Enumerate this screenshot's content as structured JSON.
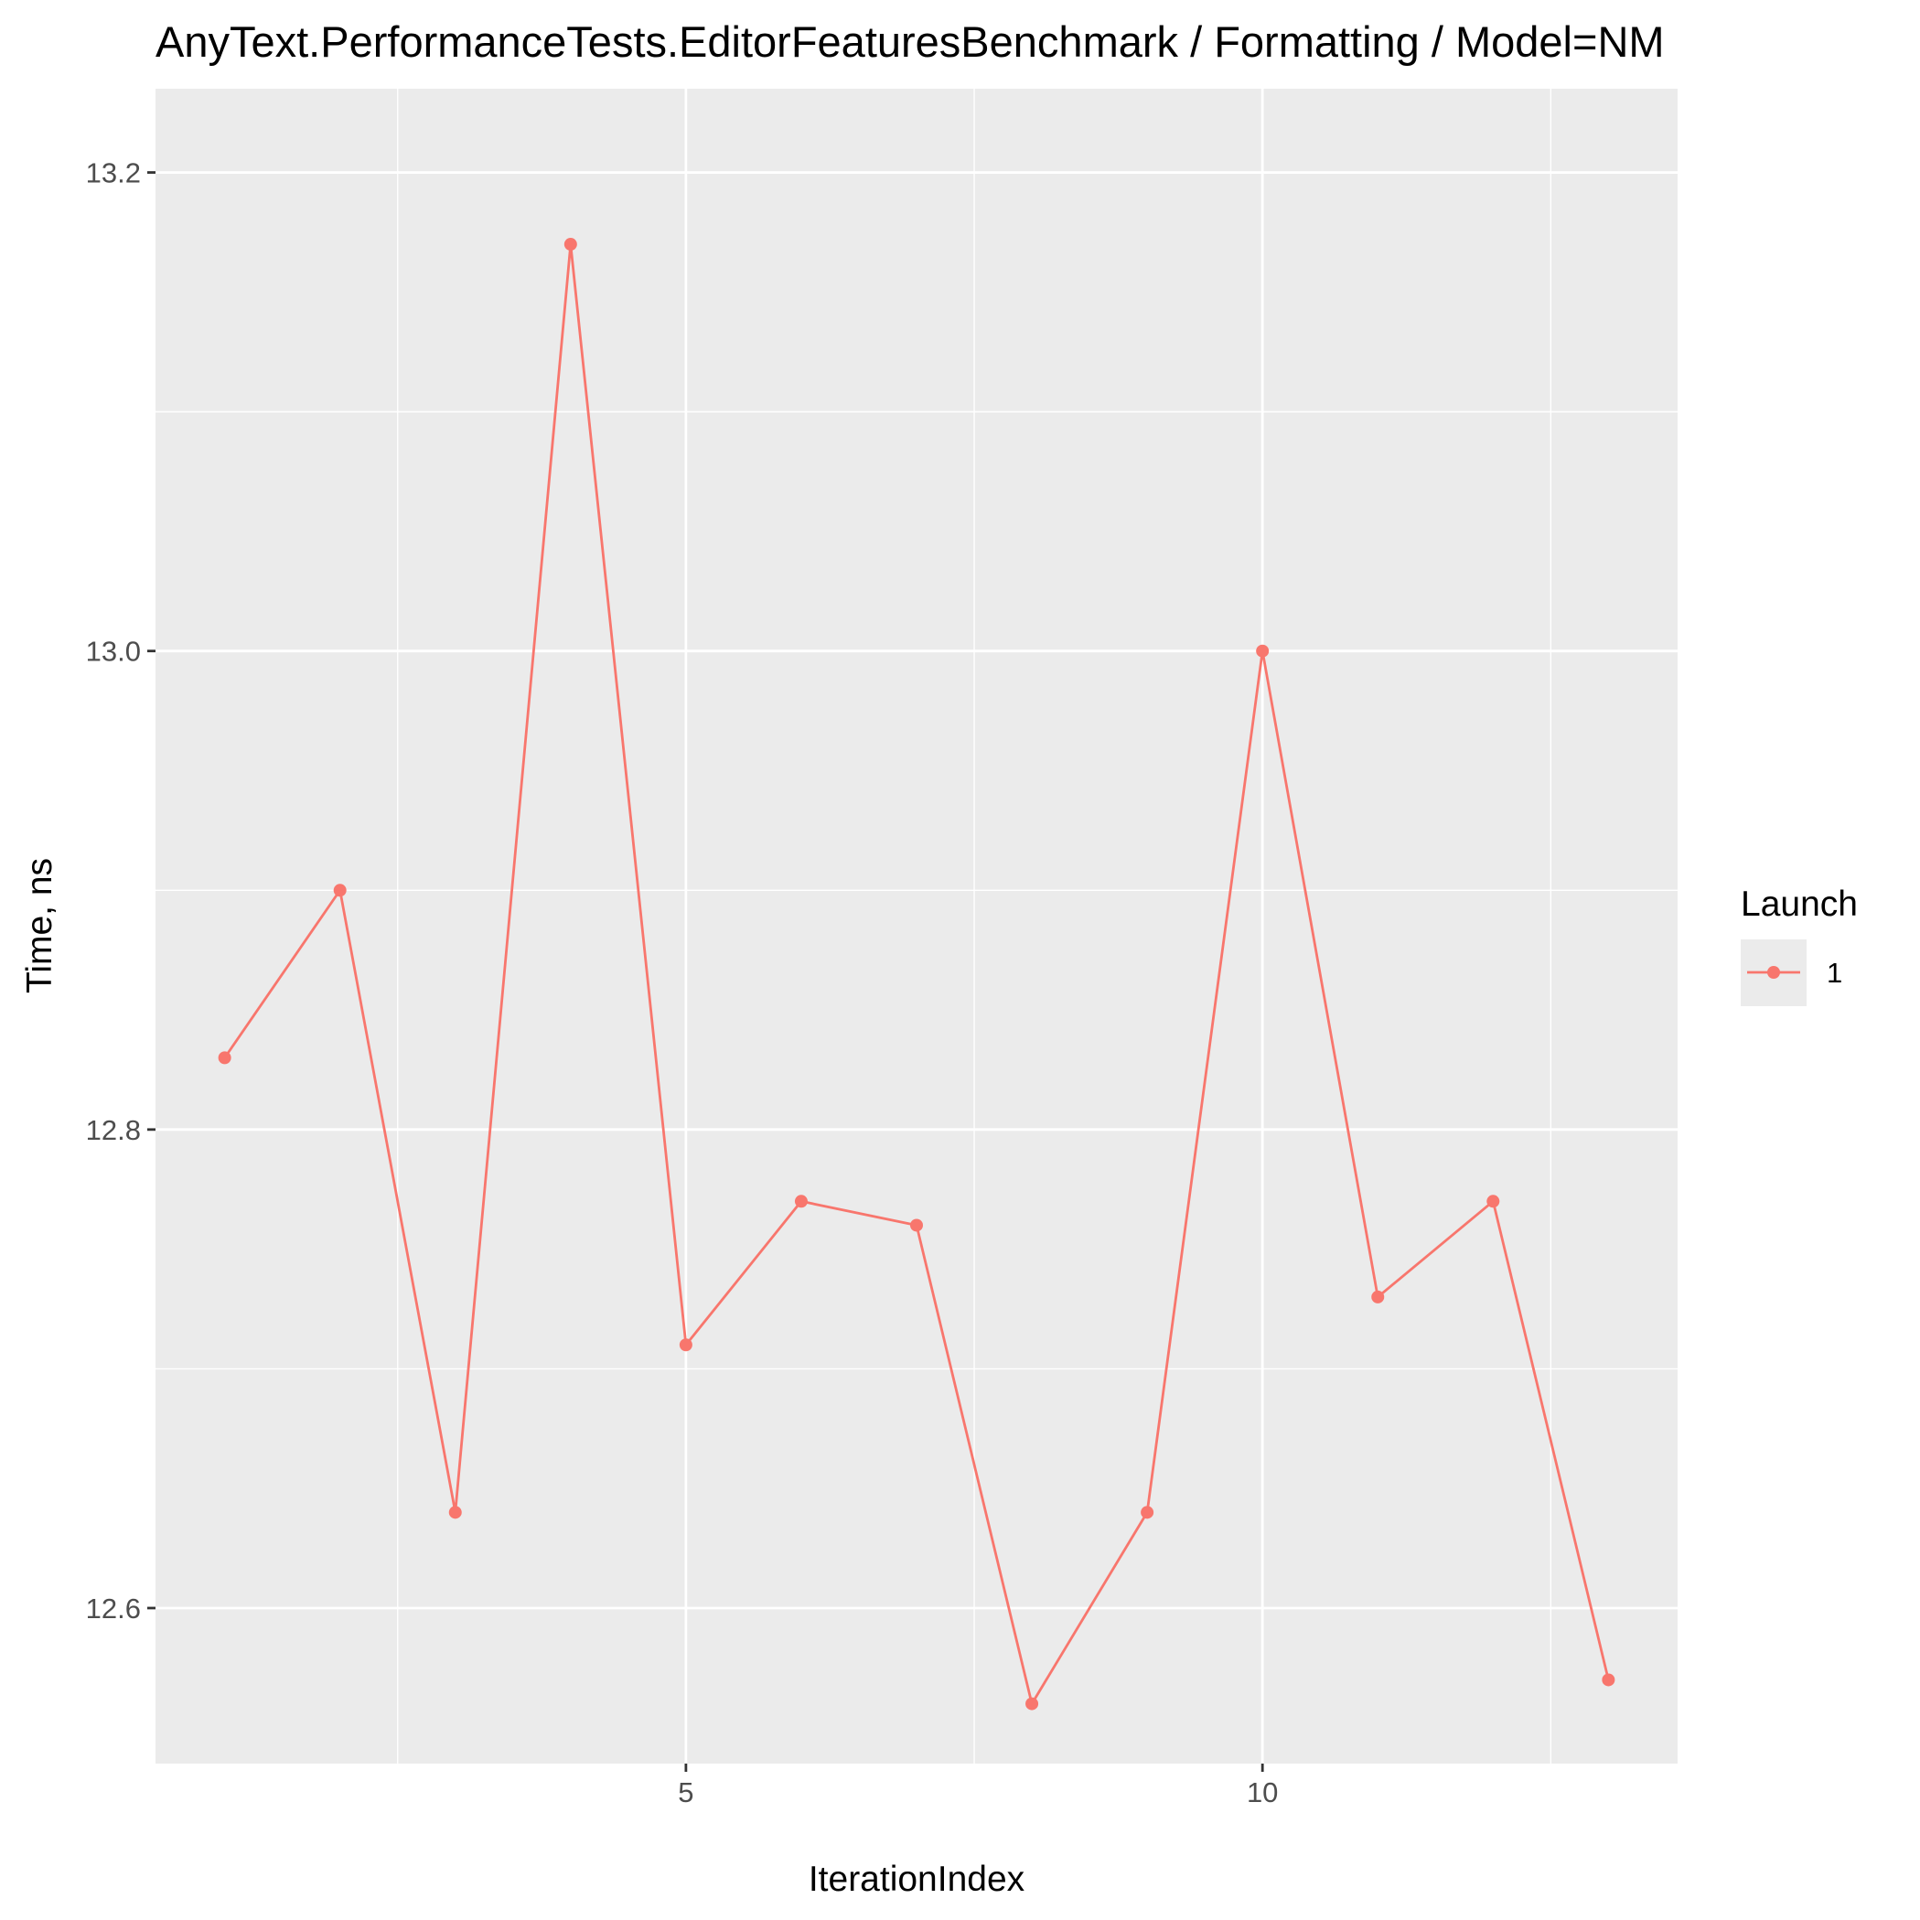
{
  "chart_data": {
    "type": "line",
    "title": "AnyText.PerformanceTests.EditorFeaturesBenchmark / Formatting / Model=NM",
    "xlabel": "IterationIndex",
    "ylabel": "Time, ns",
    "xlim": [
      0.4,
      13.6
    ],
    "ylim": [
      12.535,
      13.235
    ],
    "x_ticks": [
      5,
      10
    ],
    "x_tick_labels": [
      "5",
      "10"
    ],
    "x_minor_ticks": [
      2.5,
      7.5,
      12.5
    ],
    "y_ticks": [
      12.6,
      12.8,
      13.0,
      13.2
    ],
    "y_tick_labels": [
      "12.6",
      "12.8",
      "13.0",
      "13.2"
    ],
    "y_minor_ticks": [
      12.7,
      12.9,
      13.1
    ],
    "grid": true,
    "legend": {
      "title": "Launch",
      "placement": "right"
    },
    "series": [
      {
        "name": "1",
        "color": "#F8766D",
        "x": [
          1,
          2,
          3,
          4,
          5,
          6,
          7,
          8,
          9,
          10,
          11,
          12,
          13
        ],
        "y": [
          12.83,
          12.9,
          12.64,
          13.17,
          12.71,
          12.77,
          12.76,
          12.56,
          12.64,
          13.0,
          12.73,
          12.77,
          12.57
        ]
      }
    ]
  }
}
